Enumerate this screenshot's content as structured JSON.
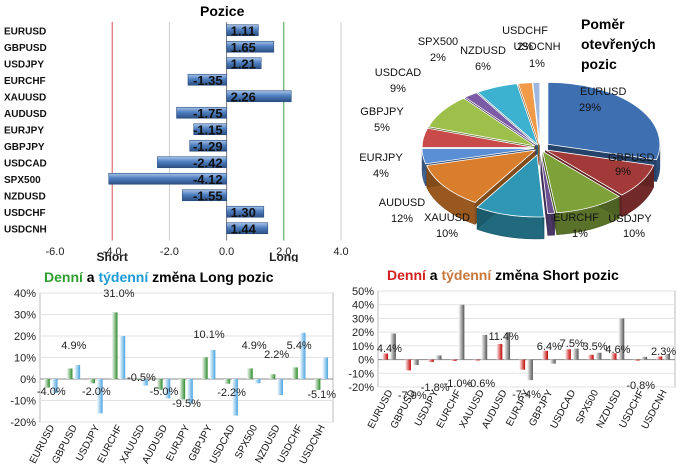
{
  "positions": {
    "title": "Pozice",
    "short_label": "Short",
    "long_label": "Long"
  },
  "ratio": {
    "title_lines": [
      "Poměr",
      "otevřených",
      "pozic"
    ]
  },
  "long_chart": {
    "title_parts": [
      "Denní",
      " a ",
      "týdenní",
      " změna Long pozic"
    ]
  },
  "short_chart": {
    "title_parts": [
      "Denní",
      " a ",
      "týdenní",
      " změna Short pozic"
    ]
  },
  "colors": {
    "pos_bar": "#4f7fc0",
    "pos_bar_dark": "#2c4f82",
    "daily_long": "#2e8b2e",
    "weekly_long": "#4aa3e0",
    "daily_short": "#c00000",
    "weekly_short": "#555555"
  },
  "chart_data": [
    {
      "type": "bar",
      "orientation": "horizontal",
      "title": "Pozice",
      "categories": [
        "EURUSD",
        "GBPUSD",
        "USDJPY",
        "EURCHF",
        "XAUUSD",
        "AUDUSD",
        "EURJPY",
        "GBPJPY",
        "USDCAD",
        "SPX500",
        "NZDUSD",
        "USDCHF",
        "USDCNH"
      ],
      "values": [
        1.11,
        1.65,
        1.21,
        -1.35,
        2.26,
        -1.75,
        -1.15,
        -1.29,
        -2.42,
        -4.12,
        -1.55,
        1.3,
        1.44
      ],
      "labels": [
        "1.11",
        "1.65",
        "1.21",
        "-1.35",
        "2.26",
        "-1.75",
        "-1.15",
        "-1.29",
        "-2.42",
        "-4.12",
        "-1.55",
        "1.30",
        "1.44"
      ],
      "xlim": [
        -6,
        4
      ],
      "ticks": [
        "-6.0",
        "-4.0",
        "-2.0",
        "0.0",
        "2.0",
        "4.0"
      ]
    },
    {
      "type": "pie",
      "title": "Poměr otevřených pozic",
      "categories": [
        "EURUSD",
        "GBPUSD",
        "USDJPY",
        "EURCHF",
        "XAUUSD",
        "AUDUSD",
        "EURJPY",
        "GBPJPY",
        "USDCAD",
        "SPX500",
        "NZDUSD",
        "USDCHF",
        "USDCNH"
      ],
      "values": [
        29,
        9,
        10,
        1,
        10,
        12,
        4,
        5,
        9,
        2,
        6,
        2,
        1
      ],
      "labels": [
        "29%",
        "9%",
        "10%",
        "1%",
        "10%",
        "12%",
        "4%",
        "5%",
        "9%",
        "2%",
        "6%",
        "2%",
        "1%"
      ],
      "colors": [
        "#3e6fb0",
        "#a33a3a",
        "#7fa13a",
        "#6b4f91",
        "#2f97b3",
        "#d97e2c",
        "#5a8fd6",
        "#c94a4a",
        "#9dc04a",
        "#7b5aa6",
        "#3cb1d0",
        "#f09a4a",
        "#9fb7de"
      ]
    },
    {
      "type": "bar",
      "title": "Denní a týdenní změna Long pozic",
      "categories": [
        "EURUSD",
        "GBPUSD",
        "USDJPY",
        "EURCHF",
        "XAUUSD",
        "AUDUSD",
        "EURJPY",
        "GBPJPY",
        "USDCAD",
        "SPX500",
        "NZDUSD",
        "USDCHF",
        "USDCNH"
      ],
      "series": [
        {
          "values": [
            -4.0,
            4.9,
            -2.0,
            31.0,
            -0.5,
            -5.0,
            -9.5,
            10.1,
            -2.2,
            4.9,
            2.2,
            5.4,
            -5.1
          ]
        },
        {
          "values": [
            -6.5,
            6.5,
            -16.0,
            20.0,
            -3.0,
            -9.0,
            -11.5,
            13.5,
            -17.0,
            -2.0,
            -7.5,
            21.5,
            10.0
          ]
        }
      ],
      "labels": [
        "-4.0%",
        "4.9%",
        "-2.0%",
        "31.0%",
        "-0.5%",
        "-5.0%",
        "-9.5%",
        "10.1%",
        "-2.2%",
        "4.9%",
        "2.2%",
        "5.4%",
        "-5.1%"
      ],
      "ylim": [
        -20,
        40
      ],
      "ticks": [
        "-20%",
        "-10%",
        "0%",
        "10%",
        "20%",
        "30%",
        "40%"
      ]
    },
    {
      "type": "bar",
      "title": "Denní a týdenní změna Short pozic",
      "categories": [
        "EURUSD",
        "GBPUSD",
        "USDJPY",
        "EURCHF",
        "XAUUSD",
        "AUDUSD",
        "EURJPY",
        "GBPJPY",
        "USDCAD",
        "SPX500",
        "NZDUSD",
        "USDCHF",
        "USDCNH"
      ],
      "series": [
        {
          "values": [
            4.4,
            -7.9,
            -1.8,
            -1.0,
            -0.6,
            11.4,
            -7.4,
            6.4,
            7.5,
            3.5,
            4.6,
            -0.8,
            2.3
          ]
        },
        {
          "values": [
            19.0,
            -4.0,
            3.0,
            40.0,
            18.0,
            20.0,
            -15.0,
            -3.0,
            8.0,
            5.0,
            30.0,
            2.0,
            4.0
          ]
        }
      ],
      "labels": [
        "4.4%",
        "-7.9%",
        "-1.8%",
        "-1.0%",
        "-0.6%",
        "11.4%",
        "-7.4%",
        "6.4%",
        "7.5%",
        "3.5%",
        "4.6%",
        "-0.8%",
        "2.3%"
      ],
      "ylim": [
        -20,
        50
      ],
      "ticks": [
        "-20%",
        "-10%",
        "0%",
        "10%",
        "20%",
        "30%",
        "40%",
        "50%"
      ]
    }
  ]
}
